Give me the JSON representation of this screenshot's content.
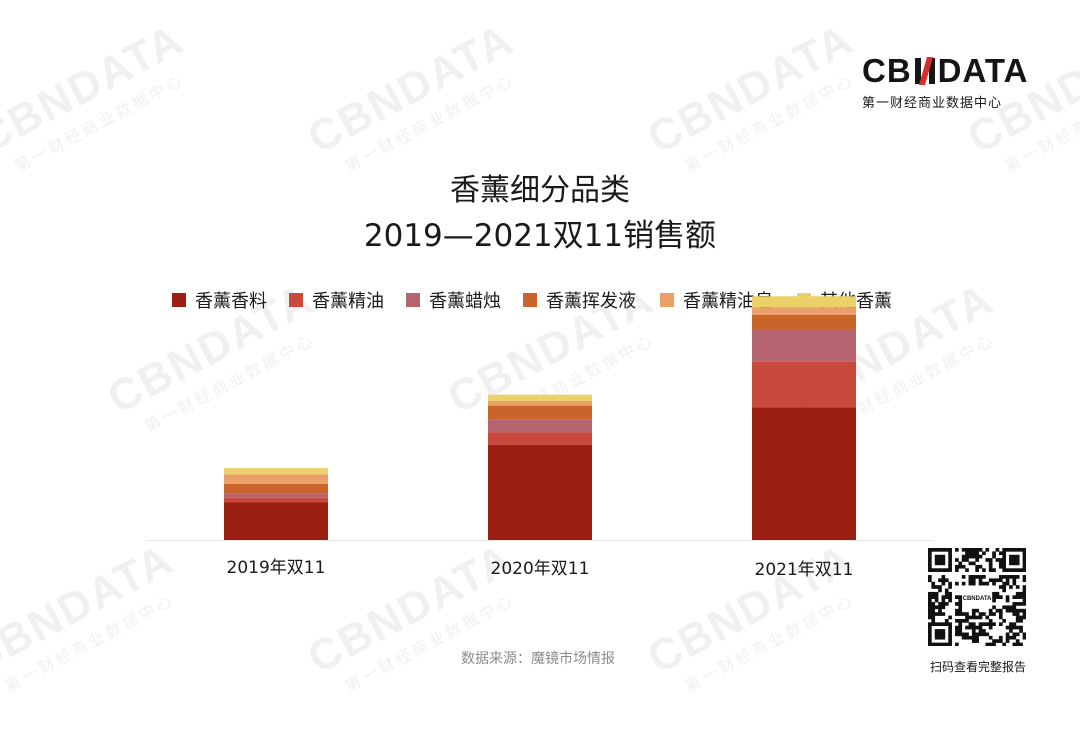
{
  "brand": {
    "logo_left": "CB",
    "logo_right": "DATA",
    "subtitle": "第一财经商业数据中心",
    "watermark_main": "CBNDATA",
    "watermark_sub": "第一财经商业数据中心"
  },
  "chart_data": {
    "type": "bar",
    "stacked": true,
    "title": "香薰细分品类",
    "subtitle": "2019—2021双11销售额",
    "categories": [
      "2019年双11",
      "2020年双11",
      "2021年双11"
    ],
    "series": [
      {
        "name": "香薰香料",
        "color": "#9c2012",
        "values": [
          24,
          61,
          85
        ]
      },
      {
        "name": "香薰精油",
        "color": "#c94a3d",
        "values": [
          3,
          8,
          29
        ]
      },
      {
        "name": "香薰蜡烛",
        "color": "#b56470",
        "values": [
          3,
          8,
          21
        ]
      },
      {
        "name": "香薰挥发液",
        "color": "#c9642a",
        "values": [
          6,
          9,
          9
        ]
      },
      {
        "name": "香薰精油皂",
        "color": "#eba06a",
        "values": [
          6,
          3,
          5
        ]
      },
      {
        "name": "其他香薰",
        "color": "#ecd069",
        "values": [
          4,
          4,
          7
        ]
      }
    ],
    "ylim": [
      0,
      160
    ],
    "grid": false,
    "legend": "top"
  },
  "source": {
    "label": "数据来源：",
    "name": "魔镜市场情报"
  },
  "qr": {
    "center_text": "CBNDATA",
    "caption": "扫码查看完整报告"
  }
}
